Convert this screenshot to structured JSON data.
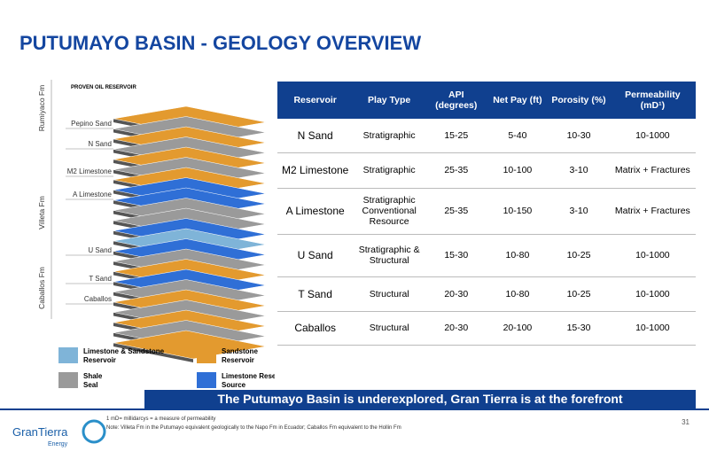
{
  "header": {
    "title": "PUTUMAYO BASIN - GEOLOGY OVERVIEW"
  },
  "diagram": {
    "proven_label": "PROVEN OIL RESERVOIR",
    "formations": [
      "Rumiyaco Fm",
      "Villeta Fm",
      "Caballos Fm"
    ],
    "layers": [
      "Pepino Sand",
      "N Sand",
      "M2 Limestone",
      "A Limestone",
      "U Sand",
      "T Sand",
      "Caballos"
    ]
  },
  "legend": [
    "Limestone & Sandstone Reservoir",
    "Sandstone Reservoir",
    "Shale Seal",
    "Limestone Reservoir / Source"
  ],
  "table": {
    "header": [
      "Reservoir",
      "Play Type",
      "API (degrees)",
      "Net Pay (ft)",
      "Porosity (%)",
      "Permeability (mD¹)"
    ],
    "rows": [
      [
        "N Sand",
        "Stratigraphic",
        "15-25",
        "5-40",
        "10-30",
        "10-1000"
      ],
      [
        "M2 Limestone",
        "Stratigraphic",
        "25-35",
        "10-100",
        "3-10",
        "Matrix + Fractures"
      ],
      [
        "A Limestone",
        "Stratigraphic Conventional Resource",
        "25-35",
        "10-150",
        "3-10",
        "Matrix + Fractures"
      ],
      [
        "U Sand",
        "Stratigraphic & Structural",
        "15-30",
        "10-80",
        "10-25",
        "10-1000"
      ],
      [
        "T Sand",
        "Structural",
        "20-30",
        "10-80",
        "10-25",
        "10-1000"
      ],
      [
        "Caballos",
        "Structural",
        "20-30",
        "20-100",
        "15-30",
        "10-1000"
      ]
    ]
  },
  "banner": "The Putumayo Basin is underexplored, Gran Tierra is at the forefront",
  "footnotes": [
    "1 mD= millidarcys = a measure of permeability",
    "Note: Villeta Fm in the Putumayo equivalent geologically to the Napo Fm in Ecuador; Caballos Fm equivalent to the Hollin Fm"
  ],
  "logo": {
    "name": "GranTierra",
    "sub": "Energy"
  },
  "page_number": "31"
}
